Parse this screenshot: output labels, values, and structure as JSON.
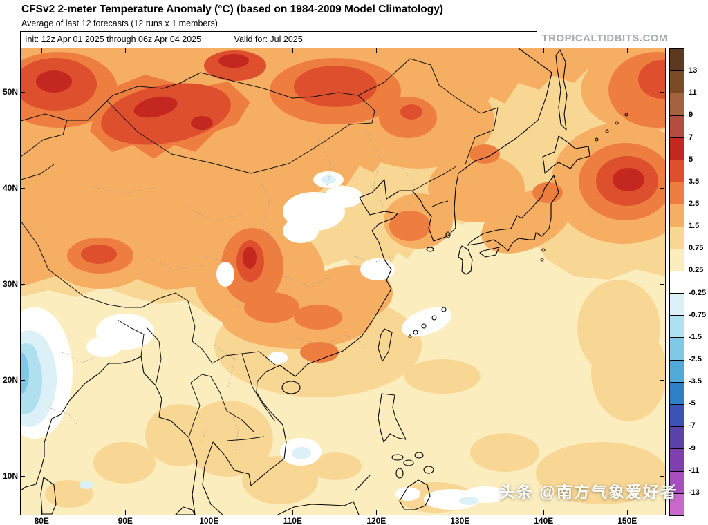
{
  "header": {
    "title": "CFSv2 2-meter Temperature Anomaly (°C) (based on 1984-2009 Model Climatology)",
    "subtitle": "Average of last 12 forecasts (12 runs x 1 members)",
    "init_label": "Init: 12z Apr 01 2025 through 06z Apr 04 2025",
    "valid_label": "Valid for: Jul 2025",
    "site_watermark": "TROPICALTIDBITS.COM"
  },
  "map": {
    "overlay_watermark": "头条 @南方气象爱好者",
    "lat_ticks": [
      {
        "value": 50,
        "label": "50N"
      },
      {
        "value": 40,
        "label": "40N"
      },
      {
        "value": 30,
        "label": "30N"
      },
      {
        "value": 20,
        "label": "20N"
      },
      {
        "value": 10,
        "label": "10N"
      }
    ],
    "lon_ticks": [
      {
        "value": 80,
        "label": "80E"
      },
      {
        "value": 90,
        "label": "90E"
      },
      {
        "value": 100,
        "label": "100E"
      },
      {
        "value": 110,
        "label": "110E"
      },
      {
        "value": 120,
        "label": "120E"
      },
      {
        "value": 130,
        "label": "130E"
      },
      {
        "value": 140,
        "label": "140E"
      },
      {
        "value": 150,
        "label": "150E"
      }
    ]
  },
  "colorbar": {
    "boundary_labels": [
      "13",
      "11",
      "9",
      "7",
      "5",
      "3.5",
      "2.5",
      "1.5",
      "0.75",
      "0.25",
      "-0.25",
      "-0.75",
      "-1.5",
      "-2.5",
      "-3.5",
      "-5",
      "-7",
      "-9",
      "-11",
      "-13"
    ],
    "segment_colors": [
      "#5C3A21",
      "#7B4A26",
      "#A2633E",
      "#B44C42",
      "#C4271F",
      "#DD4F2D",
      "#EE7E40",
      "#F5AE62",
      "#F8D794",
      "#FBEDBD",
      "#FFFFFF",
      "#DCF1F7",
      "#AFE0F0",
      "#7FC9E6",
      "#51A9D8",
      "#2F7FC4",
      "#3A53B4",
      "#5A43A8",
      "#7F3FAE",
      "#A84FC0",
      "#C969CE"
    ]
  },
  "chart_data": {
    "type": "heatmap",
    "subtype": "filled_contour_anomaly_map",
    "title": "CFSv2 2-meter Temperature Anomaly (°C) (based on 1984-2009 Model Climatology)",
    "variable": "2-meter temperature anomaly",
    "units": "°C",
    "model": "CFSv2",
    "climatology_baseline": "1984-2009",
    "forecast_average": "last 12 forecasts (12 runs x 1 members)",
    "init_range": "12z Apr 01 2025 through 06z Apr 04 2025",
    "valid_for": "Jul 2025",
    "lon_range_e": [
      78,
      154
    ],
    "lat_range_n": [
      6,
      54
    ],
    "contour_levels_c": [
      -13,
      -11,
      -9,
      -7,
      -5,
      -3.5,
      -2.5,
      -1.5,
      -0.75,
      -0.25,
      0.25,
      0.75,
      1.5,
      2.5,
      3.5,
      5,
      7,
      9,
      11,
      13
    ],
    "legend_position": "right",
    "notable_features": [
      {
        "region": "Pacific maximum east of Japan",
        "lon_e": 150,
        "lat_n": 41,
        "anomaly_c": 5.5
      },
      {
        "region": "Central China core (S Gansu / N Sichuan)",
        "lon_e": 105,
        "lat_n": 33,
        "anomaly_c": 5
      },
      {
        "region": "NW Mongolia / Altai warm band",
        "lon_e": 95,
        "lat_n": 49,
        "anomaly_c": 4.5
      },
      {
        "region": "Top-left corner (E Kazakhstan / S Siberia)",
        "lon_e": 81,
        "lat_n": 51,
        "anomaly_c": 4.5
      },
      {
        "region": "NE Mongolia / Transbaikal",
        "lon_e": 114,
        "lat_n": 51,
        "anomaly_c": 4
      },
      {
        "region": "Far NE corner (Okhotsk, ~151E 52N)",
        "lon_e": 151,
        "lat_n": 52,
        "anomaly_c": 4
      },
      {
        "region": "Western Tibet warm spot",
        "lon_e": 87,
        "lat_n": 33,
        "anomaly_c": 4
      },
      {
        "region": "Most of China / Mongolia / Japan / Korea",
        "anomaly_c": "+1.5 to +3.5"
      },
      {
        "region": "North China Plain near-zero patch",
        "lon_e": 113,
        "lat_n": 37,
        "anomaly_c": 0
      },
      {
        "region": "Eastern India cool patch (left edge)",
        "lon_e": 79,
        "lat_n": 19,
        "anomaly_c": -1.5
      },
      {
        "region": "Western Pacific subtropics / SE Asia / S China Sea",
        "anomaly_c": "+0.25 to +1.5"
      }
    ]
  }
}
